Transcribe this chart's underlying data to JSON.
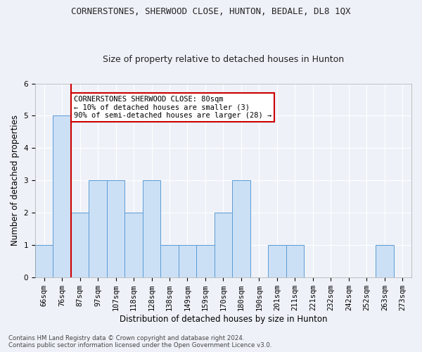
{
  "title": "CORNERSTONES, SHERWOOD CLOSE, HUNTON, BEDALE, DL8 1QX",
  "subtitle": "Size of property relative to detached houses in Hunton",
  "xlabel": "Distribution of detached houses by size in Hunton",
  "ylabel": "Number of detached properties",
  "bins": [
    "66sqm",
    "76sqm",
    "87sqm",
    "97sqm",
    "107sqm",
    "118sqm",
    "128sqm",
    "138sqm",
    "149sqm",
    "159sqm",
    "170sqm",
    "180sqm",
    "190sqm",
    "201sqm",
    "211sqm",
    "221sqm",
    "232sqm",
    "242sqm",
    "252sqm",
    "263sqm",
    "273sqm"
  ],
  "values": [
    1,
    5,
    2,
    3,
    3,
    2,
    3,
    1,
    1,
    1,
    2,
    3,
    0,
    1,
    1,
    0,
    0,
    0,
    0,
    1,
    0
  ],
  "bar_color": "#cce0f5",
  "bar_edge_color": "#5b9bd5",
  "red_line_index": 1,
  "red_line_color": "#cc0000",
  "ylim": [
    0,
    6
  ],
  "yticks": [
    0,
    1,
    2,
    3,
    4,
    5,
    6
  ],
  "annotation_text": "CORNERSTONES SHERWOOD CLOSE: 80sqm\n← 10% of detached houses are smaller (3)\n90% of semi-detached houses are larger (28) →",
  "annotation_box_color": "#ffffff",
  "annotation_box_edge": "#cc0000",
  "background_color": "#eef2f8",
  "grid_color": "#ffffff",
  "footer_line1": "Contains HM Land Registry data © Crown copyright and database right 2024.",
  "footer_line2": "Contains public sector information licensed under the Open Government Licence v3.0.",
  "title_fontsize": 9,
  "subtitle_fontsize": 9,
  "axis_label_fontsize": 8.5,
  "tick_fontsize": 7.5,
  "annotation_fontsize": 7.5
}
